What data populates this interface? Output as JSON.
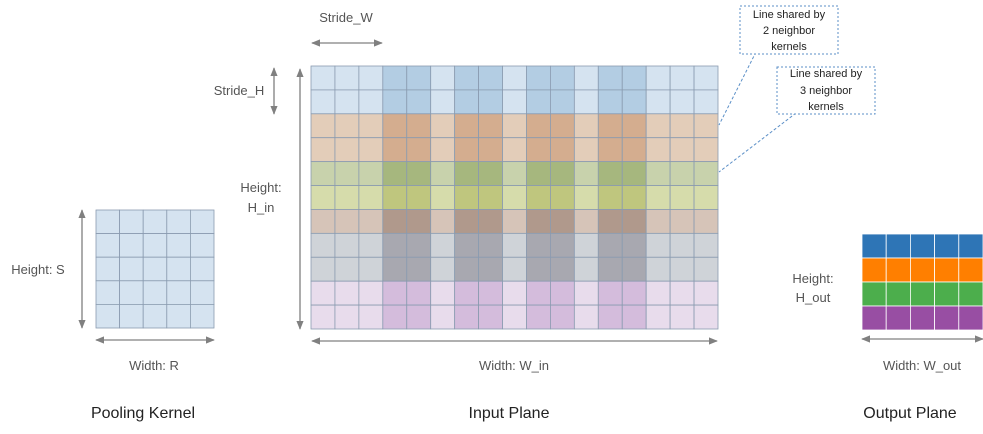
{
  "labels": {
    "stride_w": "Stride_W",
    "stride_h": "Stride_H",
    "height_s": "Height: S",
    "width_r": "Width: R",
    "height_in_1": "Height:",
    "height_in_2": "H_in",
    "width_in": "Width: W_in",
    "height_out_1": "Height:",
    "height_out_2": "H_out",
    "width_out": "Width: W_out"
  },
  "captions": {
    "pooling_kernel": "Pooling Kernel",
    "input_plane": "Input Plane",
    "output_plane": "Output Plane"
  },
  "callouts": {
    "two_neighbor": [
      "Line shared by",
      "2 neighbor",
      "kernels"
    ],
    "three_neighbor": [
      "Line shared by",
      "3 neighbor",
      "kernels"
    ]
  },
  "kernel": {
    "rows": 5,
    "cols": 5,
    "color": "#d5e3f0"
  },
  "input_plane": {
    "rows": 11,
    "cols": 17,
    "highlight_columns": [
      3,
      4,
      6,
      7,
      9,
      10,
      12,
      13
    ],
    "row_colors": [
      {
        "light": "#d5e3f0",
        "dark": "#b3cde3"
      },
      {
        "light": "#d5e3f0",
        "dark": "#b3cde3"
      },
      {
        "light": "#e3cdb9",
        "dark": "#d4ad8f"
      },
      {
        "light": "#e3cdb9",
        "dark": "#d4ad8f"
      },
      {
        "light": "#c8d2ac",
        "dark": "#a6b77e"
      },
      {
        "light": "#d6dcab",
        "dark": "#bfc67e"
      },
      {
        "light": "#d6c4b8",
        "dark": "#b0998c"
      },
      {
        "light": "#cfd3d8",
        "dark": "#a8a8b0"
      },
      {
        "light": "#cfd3d8",
        "dark": "#a8a8b0"
      },
      {
        "light": "#e8dcec",
        "dark": "#d4bcdc"
      },
      {
        "light": "#e8dcec",
        "dark": "#d4bcdc"
      }
    ]
  },
  "output_plane": {
    "cols": 5,
    "row_colors": [
      "#2e75b6",
      "#ff7f00",
      "#4cae4c",
      "#984ea3"
    ]
  }
}
